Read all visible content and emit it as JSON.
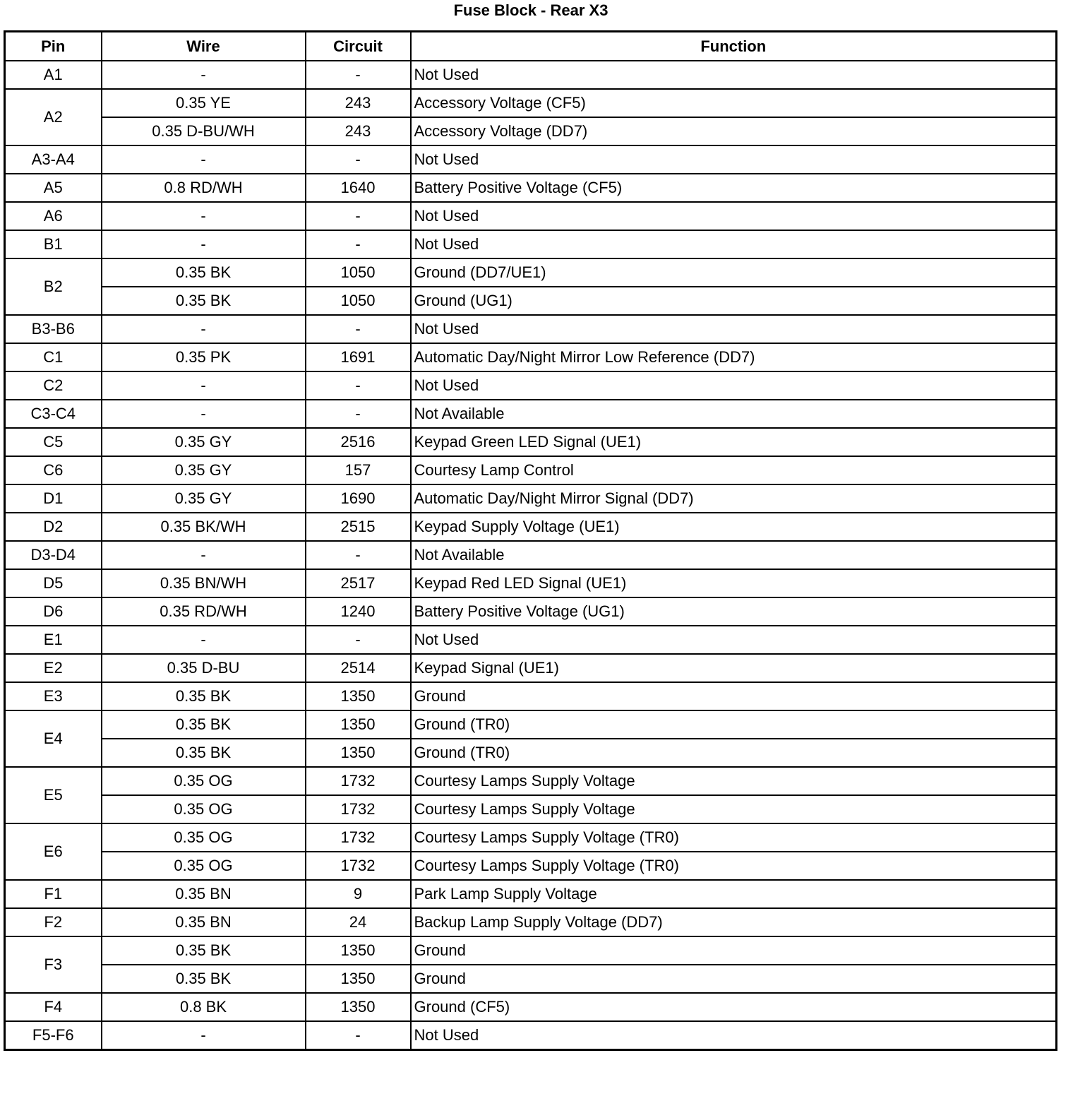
{
  "title": "Fuse Block - Rear X3",
  "headers": {
    "pin": "Pin",
    "wire": "Wire",
    "circuit": "Circuit",
    "function": "Function"
  },
  "rows": [
    {
      "pin": "A1",
      "wires": [
        {
          "wire": "-",
          "circuit": "-",
          "function": "Not Used"
        }
      ]
    },
    {
      "pin": "A2",
      "wires": [
        {
          "wire": "0.35 YE",
          "circuit": "243",
          "function": "Accessory Voltage (CF5)"
        },
        {
          "wire": "0.35 D-BU/WH",
          "circuit": "243",
          "function": "Accessory Voltage (DD7)"
        }
      ]
    },
    {
      "pin": "A3-A4",
      "wires": [
        {
          "wire": "-",
          "circuit": "-",
          "function": "Not Used"
        }
      ]
    },
    {
      "pin": "A5",
      "wires": [
        {
          "wire": "0.8 RD/WH",
          "circuit": "1640",
          "function": "Battery Positive Voltage (CF5)"
        }
      ]
    },
    {
      "pin": "A6",
      "wires": [
        {
          "wire": "-",
          "circuit": "-",
          "function": "Not Used"
        }
      ]
    },
    {
      "pin": "B1",
      "wires": [
        {
          "wire": "-",
          "circuit": "-",
          "function": "Not Used"
        }
      ]
    },
    {
      "pin": "B2",
      "wires": [
        {
          "wire": "0.35 BK",
          "circuit": "1050",
          "function": "Ground (DD7/UE1)"
        },
        {
          "wire": "0.35 BK",
          "circuit": "1050",
          "function": "Ground (UG1)"
        }
      ]
    },
    {
      "pin": "B3-B6",
      "wires": [
        {
          "wire": "-",
          "circuit": "-",
          "function": "Not Used"
        }
      ]
    },
    {
      "pin": "C1",
      "wires": [
        {
          "wire": "0.35 PK",
          "circuit": "1691",
          "function": "Automatic Day/Night Mirror Low Reference (DD7)"
        }
      ]
    },
    {
      "pin": "C2",
      "wires": [
        {
          "wire": "-",
          "circuit": "-",
          "function": "Not Used"
        }
      ]
    },
    {
      "pin": "C3-C4",
      "wires": [
        {
          "wire": "-",
          "circuit": "-",
          "function": "Not Available"
        }
      ]
    },
    {
      "pin": "C5",
      "wires": [
        {
          "wire": "0.35 GY",
          "circuit": "2516",
          "function": "Keypad Green LED Signal (UE1)"
        }
      ]
    },
    {
      "pin": "C6",
      "wires": [
        {
          "wire": "0.35 GY",
          "circuit": "157",
          "function": "Courtesy Lamp Control"
        }
      ]
    },
    {
      "pin": "D1",
      "wires": [
        {
          "wire": "0.35 GY",
          "circuit": "1690",
          "function": "Automatic Day/Night Mirror Signal (DD7)"
        }
      ]
    },
    {
      "pin": "D2",
      "wires": [
        {
          "wire": "0.35 BK/WH",
          "circuit": "2515",
          "function": "Keypad Supply Voltage (UE1)"
        }
      ]
    },
    {
      "pin": "D3-D4",
      "wires": [
        {
          "wire": "-",
          "circuit": "-",
          "function": "Not Available"
        }
      ]
    },
    {
      "pin": "D5",
      "wires": [
        {
          "wire": "0.35 BN/WH",
          "circuit": "2517",
          "function": "Keypad Red LED Signal (UE1)"
        }
      ]
    },
    {
      "pin": "D6",
      "wires": [
        {
          "wire": "0.35 RD/WH",
          "circuit": "1240",
          "function": "Battery Positive Voltage (UG1)"
        }
      ]
    },
    {
      "pin": "E1",
      "wires": [
        {
          "wire": "-",
          "circuit": "-",
          "function": "Not Used"
        }
      ]
    },
    {
      "pin": "E2",
      "wires": [
        {
          "wire": "0.35 D-BU",
          "circuit": "2514",
          "function": "Keypad Signal (UE1)"
        }
      ]
    },
    {
      "pin": "E3",
      "wires": [
        {
          "wire": "0.35 BK",
          "circuit": "1350",
          "function": "Ground"
        }
      ]
    },
    {
      "pin": "E4",
      "wires": [
        {
          "wire": "0.35 BK",
          "circuit": "1350",
          "function": "Ground (TR0)"
        },
        {
          "wire": "0.35 BK",
          "circuit": "1350",
          "function": "Ground (TR0)"
        }
      ]
    },
    {
      "pin": "E5",
      "wires": [
        {
          "wire": "0.35 OG",
          "circuit": "1732",
          "function": "Courtesy Lamps Supply Voltage"
        },
        {
          "wire": "0.35 OG",
          "circuit": "1732",
          "function": "Courtesy Lamps Supply Voltage"
        }
      ]
    },
    {
      "pin": "E6",
      "wires": [
        {
          "wire": "0.35 OG",
          "circuit": "1732",
          "function": "Courtesy Lamps Supply Voltage (TR0)"
        },
        {
          "wire": "0.35 OG",
          "circuit": "1732",
          "function": "Courtesy Lamps Supply Voltage (TR0)"
        }
      ]
    },
    {
      "pin": "F1",
      "wires": [
        {
          "wire": "0.35 BN",
          "circuit": "9",
          "function": "Park Lamp Supply Voltage"
        }
      ]
    },
    {
      "pin": "F2",
      "wires": [
        {
          "wire": "0.35 BN",
          "circuit": "24",
          "function": "Backup Lamp Supply Voltage (DD7)"
        }
      ]
    },
    {
      "pin": "F3",
      "wires": [
        {
          "wire": "0.35 BK",
          "circuit": "1350",
          "function": "Ground"
        },
        {
          "wire": "0.35 BK",
          "circuit": "1350",
          "function": "Ground"
        }
      ]
    },
    {
      "pin": "F4",
      "wires": [
        {
          "wire": "0.8 BK",
          "circuit": "1350",
          "function": "Ground (CF5)"
        }
      ]
    },
    {
      "pin": "F5-F6",
      "wires": [
        {
          "wire": "-",
          "circuit": "-",
          "function": "Not Used"
        }
      ]
    }
  ]
}
